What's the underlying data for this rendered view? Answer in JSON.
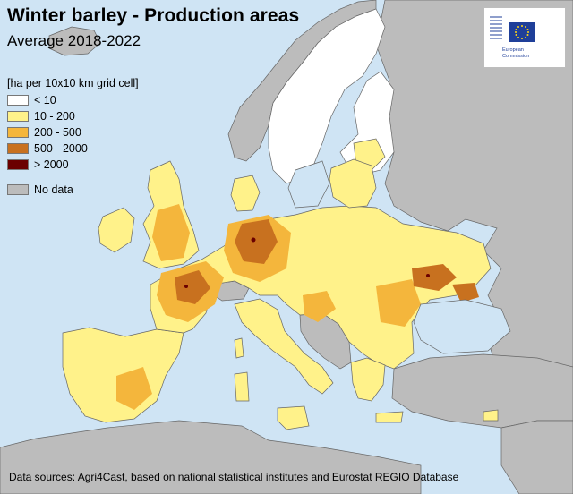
{
  "title": "Winter barley - Production areas",
  "subtitle": "Average 2018-2022",
  "legend": {
    "title": "[ha per 10x10 km grid cell]",
    "items": [
      {
        "label": "< 10",
        "color": "#ffffff"
      },
      {
        "label": "10 - 200",
        "color": "#fff28a"
      },
      {
        "label": "200 - 500",
        "color": "#f4b63c"
      },
      {
        "label": "500 - 2000",
        "color": "#c8711f"
      },
      {
        "label": "> 2000",
        "color": "#6b0000"
      }
    ],
    "nodata": {
      "label": "No data",
      "color": "#bcbcbc"
    }
  },
  "logo": {
    "line1": "European",
    "line2": "Commission"
  },
  "source": "Data sources: Agri4Cast, based on national statistical institutes and Eurostat REGIO Database",
  "colors": {
    "sea": "#cfe4f4",
    "nodata_land": "#bcbcbc",
    "border": "#555555"
  }
}
